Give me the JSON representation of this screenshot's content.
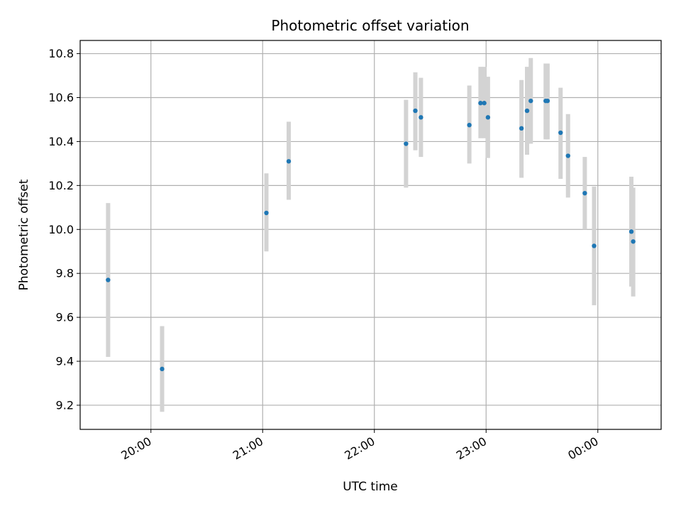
{
  "chart_data": {
    "type": "scatter",
    "title": "Photometric offset variation",
    "xlabel": "UTC time",
    "ylabel": "Photometric offset",
    "x_axis": {
      "kind": "time",
      "min": "19:22",
      "max": "00:34",
      "ticks": [
        "20:00",
        "21:00",
        "22:00",
        "23:00",
        "00:00"
      ]
    },
    "y_axis": {
      "min": 9.09,
      "max": 10.86,
      "ticks": [
        "9.2",
        "9.4",
        "9.6",
        "9.8",
        "10.0",
        "10.2",
        "10.4",
        "10.6",
        "10.8"
      ]
    },
    "grid": true,
    "colors": {
      "marker": "#1f77b4",
      "errorbar": "#d3d3d3",
      "grid": "#b0b0b0",
      "axes": "#000000"
    },
    "series": [
      {
        "points": [
          {
            "x": "19:37",
            "y": 9.77,
            "ylow": 9.42,
            "yhigh": 10.12
          },
          {
            "x": "20:06",
            "y": 9.365,
            "ylow": 9.17,
            "yhigh": 9.56
          },
          {
            "x": "21:02",
            "y": 10.075,
            "ylow": 9.9,
            "yhigh": 10.255
          },
          {
            "x": "21:14",
            "y": 10.31,
            "ylow": 10.135,
            "yhigh": 10.49
          },
          {
            "x": "22:17",
            "y": 10.39,
            "ylow": 10.19,
            "yhigh": 10.59
          },
          {
            "x": "22:22",
            "y": 10.54,
            "ylow": 10.36,
            "yhigh": 10.715
          },
          {
            "x": "22:25",
            "y": 10.51,
            "ylow": 10.33,
            "yhigh": 10.69
          },
          {
            "x": "22:51",
            "y": 10.475,
            "ylow": 10.3,
            "yhigh": 10.655
          },
          {
            "x": "22:57",
            "y": 10.575,
            "ylow": 10.415,
            "yhigh": 10.74
          },
          {
            "x": "22:59",
            "y": 10.575,
            "ylow": 10.415,
            "yhigh": 10.74
          },
          {
            "x": "23:01",
            "y": 10.51,
            "ylow": 10.325,
            "yhigh": 10.695
          },
          {
            "x": "23:19",
            "y": 10.46,
            "ylow": 10.235,
            "yhigh": 10.68
          },
          {
            "x": "23:22",
            "y": 10.54,
            "ylow": 10.34,
            "yhigh": 10.74
          },
          {
            "x": "23:24",
            "y": 10.585,
            "ylow": 10.39,
            "yhigh": 10.78
          },
          {
            "x": "23:32",
            "y": 10.585,
            "ylow": 10.41,
            "yhigh": 10.755
          },
          {
            "x": "23:33",
            "y": 10.585,
            "ylow": 10.41,
            "yhigh": 10.755
          },
          {
            "x": "23:40",
            "y": 10.44,
            "ylow": 10.23,
            "yhigh": 10.645
          },
          {
            "x": "23:44",
            "y": 10.335,
            "ylow": 10.145,
            "yhigh": 10.525
          },
          {
            "x": "23:53",
            "y": 10.165,
            "ylow": 10.0,
            "yhigh": 10.33
          },
          {
            "x": "23:58",
            "y": 9.925,
            "ylow": 9.655,
            "yhigh": 10.195
          },
          {
            "x": "00:18",
            "y": 9.99,
            "ylow": 9.74,
            "yhigh": 10.24
          },
          {
            "x": "00:19",
            "y": 9.945,
            "ylow": 9.695,
            "yhigh": 10.19
          }
        ]
      }
    ]
  }
}
